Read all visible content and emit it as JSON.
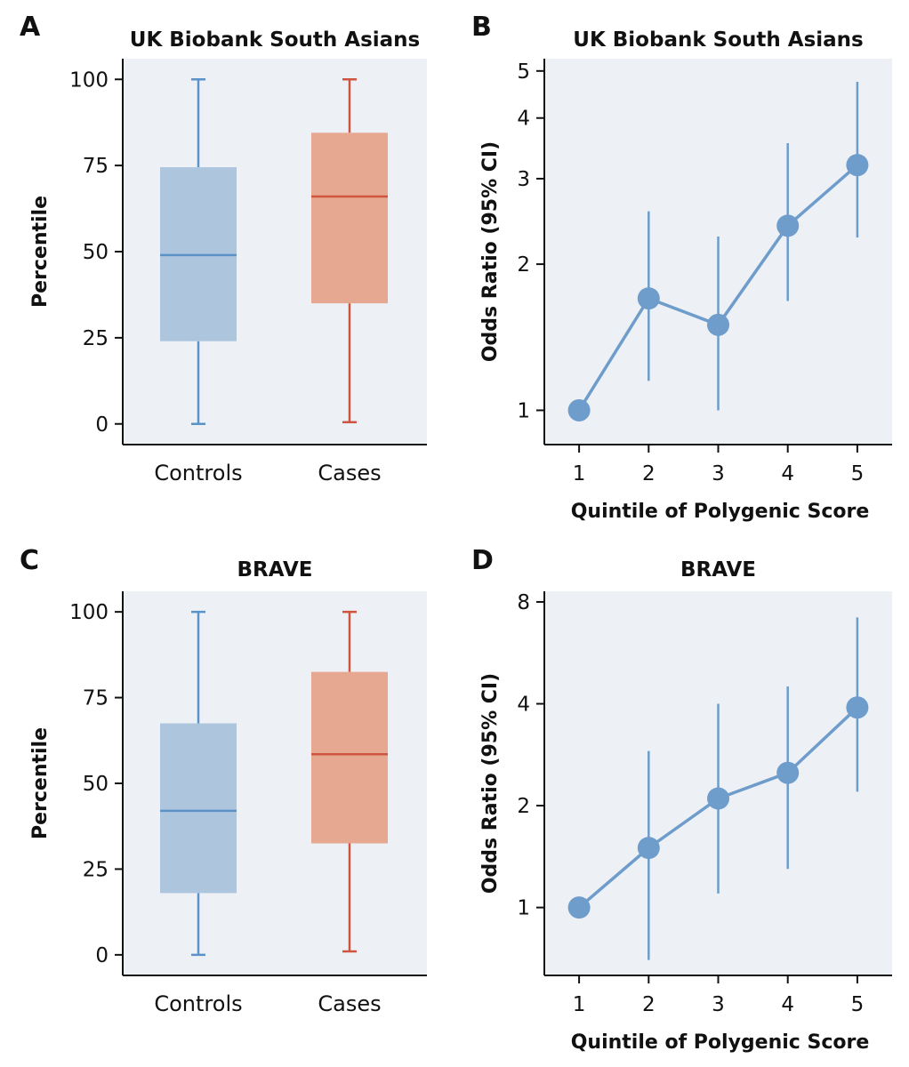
{
  "colors": {
    "plot_bg": "#edf1f6",
    "controls_fill": "#aec5de",
    "controls_line": "#5b93c9",
    "cases_fill": "#e7a891",
    "cases_line": "#cf5540",
    "or_line": "#6e9ccb",
    "or_point": "#6e9ccb",
    "axis": "#111111"
  },
  "chart_data": [
    {
      "panel": "A",
      "type": "box",
      "title": "UK Biobank South Asians",
      "xlabel": "",
      "ylabel": "Percentile",
      "ylim": [
        -6,
        106
      ],
      "yticks": [
        0,
        25,
        50,
        75,
        100
      ],
      "categories": [
        "Controls",
        "Cases"
      ],
      "boxes": [
        {
          "name": "Controls",
          "min": 0,
          "q1": 24,
          "median": 49,
          "q3": 74.5,
          "max": 100
        },
        {
          "name": "Cases",
          "min": 0.5,
          "q1": 35,
          "median": 66,
          "q3": 84.5,
          "max": 100
        }
      ]
    },
    {
      "panel": "B",
      "type": "line",
      "title": "UK Biobank South Asians",
      "xlabel": "Quintile of Polygenic Score",
      "ylabel": "Odds Ratio (95% CI)",
      "yscale": "log",
      "ylim": [
        0.85,
        5.3
      ],
      "yticks": [
        1,
        2,
        3,
        4,
        5
      ],
      "xlim": [
        0.5,
        5.5
      ],
      "x": [
        1,
        2,
        3,
        4,
        5
      ],
      "series": [
        {
          "values": [
            1.0,
            1.7,
            1.5,
            2.4,
            3.2
          ],
          "ci_low": [
            null,
            1.15,
            1.0,
            1.68,
            2.27
          ],
          "ci_high": [
            null,
            2.57,
            2.28,
            3.55,
            4.75
          ]
        }
      ]
    },
    {
      "panel": "C",
      "type": "box",
      "title": "BRAVE",
      "xlabel": "",
      "ylabel": "Percentile",
      "ylim": [
        -6,
        106
      ],
      "yticks": [
        0,
        25,
        50,
        75,
        100
      ],
      "categories": [
        "Controls",
        "Cases"
      ],
      "boxes": [
        {
          "name": "Controls",
          "min": 0,
          "q1": 18,
          "median": 42,
          "q3": 67.5,
          "max": 100
        },
        {
          "name": "Cases",
          "min": 1,
          "q1": 32.5,
          "median": 58.5,
          "q3": 82.5,
          "max": 100
        }
      ]
    },
    {
      "panel": "D",
      "type": "line",
      "title": "BRAVE",
      "xlabel": "Quintile of Polygenic Score",
      "ylabel": "Odds Ratio (95% CI)",
      "yscale": "log",
      "ylim": [
        0.63,
        8.6
      ],
      "yticks": [
        1,
        2,
        4,
        8
      ],
      "xlim": [
        0.5,
        5.5
      ],
      "x": [
        1,
        2,
        3,
        4,
        5
      ],
      "series": [
        {
          "values": [
            1.0,
            1.5,
            2.1,
            2.5,
            3.9
          ],
          "ci_low": [
            null,
            0.7,
            1.1,
            1.3,
            2.2
          ],
          "ci_high": [
            null,
            2.9,
            4.0,
            4.5,
            7.2
          ]
        }
      ]
    }
  ]
}
